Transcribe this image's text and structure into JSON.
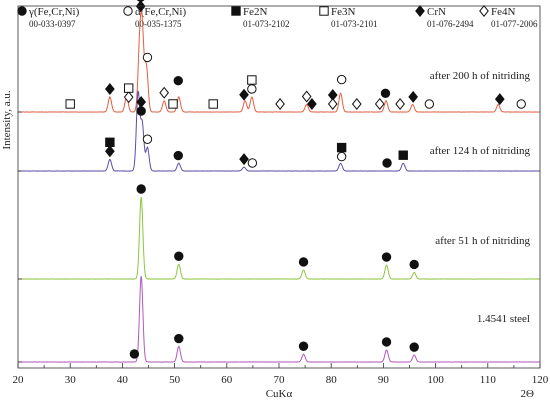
{
  "chart_data": {
    "type": "line",
    "title": "",
    "xlabel": "CuKα",
    "xlabel_right": "2Θ",
    "ylabel": "Intensity, a.u.",
    "xlim": [
      20,
      120
    ],
    "x_ticks": [
      20,
      30,
      40,
      50,
      60,
      70,
      80,
      90,
      100,
      110,
      120
    ],
    "legend": [
      {
        "symbol": "filled-circle",
        "name": "γ(Fe,Cr,Ni)",
        "card": "00-033-0397"
      },
      {
        "symbol": "open-circle",
        "name": "α(Fe,Cr,Ni)",
        "card": "00-035-1375"
      },
      {
        "symbol": "filled-square",
        "name": "Fe2N",
        "card": "01-073-2102"
      },
      {
        "symbol": "open-square",
        "name": "Fe3N",
        "card": "01-073-2101"
      },
      {
        "symbol": "filled-diamond",
        "name": "CrN",
        "card": "01-076-2494"
      },
      {
        "symbol": "open-diamond",
        "name": "Fe4N",
        "card": "01-077-2006"
      }
    ],
    "series": [
      {
        "name": "after 200 h of nitriding",
        "color": "#e06040",
        "peaks": [
          [
            37.6,
            2
          ],
          [
            40.8,
            2
          ],
          [
            43.3,
            8
          ],
          [
            43.8,
            10
          ],
          [
            44.6,
            6
          ],
          [
            48.0,
            1.5
          ],
          [
            50.8,
            2
          ],
          [
            63.5,
            1.5
          ],
          [
            64.8,
            2
          ],
          [
            75.3,
            1
          ],
          [
            81.8,
            2.5
          ],
          [
            90.5,
            1.5
          ],
          [
            95.6,
            1
          ],
          [
            112.0,
            1
          ]
        ],
        "markers": [
          {
            "x": 30,
            "symbol": "open-square"
          },
          {
            "x": 37.6,
            "symbol": "filled-diamond"
          },
          {
            "x": 41.2,
            "symbol": "open-diamond"
          },
          {
            "x": 41.2,
            "symbol": "open-square",
            "level": 2
          },
          {
            "x": 43.5,
            "symbol": "filled-diamond"
          },
          {
            "x": 43.5,
            "symbol": "filled-circle",
            "level": 2
          },
          {
            "x": 43.5,
            "symbol": "filled-diamond",
            "level": 3
          },
          {
            "x": 43.5,
            "symbol": "open-square",
            "level": 4
          },
          {
            "x": 44.8,
            "symbol": "open-circle",
            "level": 2
          },
          {
            "x": 48.0,
            "symbol": "open-diamond"
          },
          {
            "x": 49.7,
            "symbol": "open-square"
          },
          {
            "x": 50.7,
            "symbol": "filled-circle",
            "level": 2
          },
          {
            "x": 57.4,
            "symbol": "open-square"
          },
          {
            "x": 63.3,
            "symbol": "filled-diamond"
          },
          {
            "x": 64.8,
            "symbol": "open-circle"
          },
          {
            "x": 64.8,
            "symbol": "open-square",
            "level": 2
          },
          {
            "x": 70.2,
            "symbol": "open-diamond"
          },
          {
            "x": 75.3,
            "symbol": "open-diamond"
          },
          {
            "x": 76.3,
            "symbol": "filled-diamond"
          },
          {
            "x": 80.3,
            "symbol": "filled-diamond",
            "level": 2
          },
          {
            "x": 80.3,
            "symbol": "open-diamond"
          },
          {
            "x": 82.0,
            "symbol": "open-circle",
            "level": 2
          },
          {
            "x": 84.9,
            "symbol": "open-diamond"
          },
          {
            "x": 89.3,
            "symbol": "open-diamond"
          },
          {
            "x": 90.4,
            "symbol": "filled-circle"
          },
          {
            "x": 93.2,
            "symbol": "open-diamond"
          },
          {
            "x": 95.7,
            "symbol": "filled-diamond"
          },
          {
            "x": 98.8,
            "symbol": "open-circle"
          },
          {
            "x": 112.3,
            "symbol": "filled-diamond"
          },
          {
            "x": 116.4,
            "symbol": "open-circle"
          }
        ]
      },
      {
        "name": "after 124 h of nitriding",
        "color": "#5a4fa8",
        "peaks": [
          [
            37.6,
            1.5
          ],
          [
            43.0,
            10
          ],
          [
            43.8,
            6
          ],
          [
            44.8,
            3
          ],
          [
            50.8,
            1
          ],
          [
            63.3,
            0.5
          ],
          [
            81.8,
            1
          ],
          [
            93.8,
            1
          ]
        ],
        "markers": [
          {
            "x": 37.6,
            "symbol": "filled-diamond"
          },
          {
            "x": 37.6,
            "symbol": "filled-square",
            "level": 2
          },
          {
            "x": 43.6,
            "symbol": "filled-circle"
          },
          {
            "x": 43.6,
            "symbol": "filled-diamond",
            "level": 2
          },
          {
            "x": 44.8,
            "symbol": "open-circle"
          },
          {
            "x": 50.7,
            "symbol": "filled-circle"
          },
          {
            "x": 63.3,
            "symbol": "filled-diamond"
          },
          {
            "x": 64.9,
            "symbol": "open-circle"
          },
          {
            "x": 82.0,
            "symbol": "open-circle"
          },
          {
            "x": 82.0,
            "symbol": "filled-square",
            "level": 2
          },
          {
            "x": 90.7,
            "symbol": "filled-circle"
          },
          {
            "x": 93.8,
            "symbol": "filled-square"
          }
        ]
      },
      {
        "name": "after 51 h of nitriding",
        "color": "#8cc63f",
        "peaks": [
          [
            43.6,
            10
          ],
          [
            50.8,
            1.8
          ],
          [
            74.7,
            1.1
          ],
          [
            90.6,
            1.7
          ],
          [
            95.9,
            0.8
          ]
        ],
        "markers": [
          {
            "x": 43.6,
            "symbol": "filled-circle"
          },
          {
            "x": 50.8,
            "symbol": "filled-circle"
          },
          {
            "x": 74.7,
            "symbol": "filled-circle"
          },
          {
            "x": 90.6,
            "symbol": "filled-circle"
          },
          {
            "x": 95.9,
            "symbol": "filled-circle"
          }
        ]
      },
      {
        "name": "1.4541 steel",
        "color": "#b05ab8",
        "peaks": [
          [
            43.6,
            10
          ],
          [
            50.8,
            1.8
          ],
          [
            74.7,
            0.9
          ],
          [
            90.6,
            1.4
          ],
          [
            95.9,
            0.8
          ]
        ],
        "markers": [
          {
            "x": 42.3,
            "symbol": "filled-circle"
          },
          {
            "x": 50.8,
            "symbol": "filled-circle"
          },
          {
            "x": 74.7,
            "symbol": "filled-circle"
          },
          {
            "x": 90.6,
            "symbol": "filled-circle"
          },
          {
            "x": 95.9,
            "symbol": "filled-circle"
          }
        ]
      }
    ]
  }
}
